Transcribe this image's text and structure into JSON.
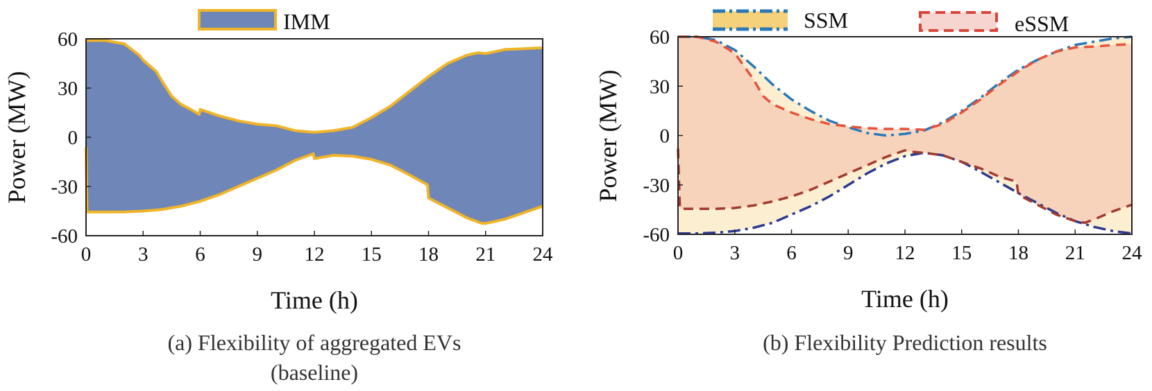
{
  "chart_data": [
    {
      "type": "area",
      "caption": [
        "(a) Flexibility of aggregated EVs",
        "(baseline)"
      ],
      "xlabel": "Time (h)",
      "ylabel": "Power (MW)",
      "xlim": [
        0,
        24
      ],
      "ylim": [
        -60,
        60
      ],
      "xticks": [
        "0",
        "3",
        "6",
        "9",
        "12",
        "15",
        "18",
        "21",
        "24"
      ],
      "yticks": [
        "60",
        "30",
        "0",
        "-30",
        "-60"
      ],
      "legend_position": "top-center",
      "grid": false,
      "series": [
        {
          "name": "IMM",
          "fill_color": "#6e86b8",
          "edge_color": "#f0b429",
          "style": "solid",
          "upper": {
            "x": [
              0,
              1,
              2,
              2.8,
              3,
              3.7,
              4,
              4.5,
              5,
              5.5,
              5.95,
              6,
              7,
              8,
              9,
              10,
              11,
              12,
              13,
              14,
              15,
              16,
              17,
              18,
              19,
              20,
              20.6,
              21,
              22,
              23,
              24
            ],
            "y": [
              59,
              59,
              57,
              50,
              47,
              40,
              34,
              25,
              20,
              17,
              14,
              17,
              13,
              10,
              8,
              7,
              4,
              3,
              4,
              6,
              12,
              19,
              28,
              37,
              45,
              50,
              51.5,
              51,
              53.5,
              54,
              54.5
            ]
          },
          "lower": {
            "x": [
              0,
              0.05,
              1,
              2,
              3,
              4,
              5,
              6,
              7,
              8,
              9,
              10,
              11,
              11.95,
              12,
              13,
              14,
              15,
              16,
              17,
              17.95,
              18,
              19,
              20,
              20.8,
              21,
              22,
              23,
              24
            ],
            "y": [
              -6,
              -45.5,
              -45.5,
              -45.5,
              -45,
              -44,
              -42,
              -39,
              -35,
              -30,
              -25,
              -20,
              -14,
              -10,
              -13,
              -11,
              -11.5,
              -13.5,
              -17,
              -23,
              -29,
              -37,
              -43,
              -49,
              -52.5,
              -52.5,
              -50,
              -46,
              -42
            ]
          }
        }
      ]
    },
    {
      "type": "area",
      "caption": [
        "(b) Flexibility Prediction results"
      ],
      "xlabel": "Time (h)",
      "ylabel": "Power (MW)",
      "xlim": [
        0,
        24
      ],
      "ylim": [
        -60,
        60
      ],
      "xticks": [
        "0",
        "3",
        "6",
        "9",
        "12",
        "15",
        "18",
        "21",
        "24"
      ],
      "yticks": [
        "60",
        "30",
        "0",
        "-30",
        "-60"
      ],
      "legend_position": "top",
      "grid": false,
      "series": [
        {
          "name": "SSM",
          "fill_color": "#f5d27a",
          "style": "dash-dot",
          "upper_color": "#2a78b8",
          "lower_color": "#2d3a8f",
          "upper": {
            "x": [
              0,
              1,
              2,
              3,
              4,
              5,
              6,
              7,
              8,
              9,
              10,
              11,
              12,
              13,
              14,
              15,
              16,
              17,
              18,
              19,
              20,
              21,
              22,
              23,
              24
            ],
            "y": [
              60,
              60,
              58,
              52,
              42,
              31,
              22,
              15,
              9,
              5,
              1.5,
              0,
              1,
              3,
              8,
              15,
              23,
              32,
              40,
              46,
              51,
              55,
              57,
              59,
              60
            ]
          },
          "lower": {
            "x": [
              0,
              1,
              2,
              3,
              4,
              5,
              6,
              7,
              8,
              9,
              10,
              11,
              12,
              13,
              14,
              15,
              16,
              17,
              18,
              19,
              20,
              21,
              22,
              23,
              24
            ],
            "y": [
              -59.5,
              -59.5,
              -59,
              -58,
              -56,
              -53,
              -48,
              -43,
              -37,
              -30,
              -23,
              -17,
              -12.5,
              -10.5,
              -12,
              -16,
              -22,
              -28.5,
              -35,
              -41,
              -47,
              -52,
              -55.5,
              -58,
              -59.5
            ]
          }
        },
        {
          "name": "eSSM",
          "fill_color": "#f4c9b2",
          "style": "dashed",
          "upper_color": "#e8513a",
          "lower_color": "#a13a2f",
          "upper": {
            "x": [
              0,
              1,
              2,
              3,
              4,
              4.5,
              5,
              6,
              7,
              8,
              9,
              10,
              11,
              12,
              13,
              14,
              15,
              16,
              17,
              18,
              19,
              20,
              21,
              22,
              23,
              24
            ],
            "y": [
              60,
              60,
              57,
              50,
              34,
              24,
              19,
              14,
              10,
              7,
              5.5,
              4.5,
              4,
              4,
              3.5,
              7,
              14,
              22,
              31,
              39,
              46,
              51,
              53.5,
              54,
              55,
              55.5
            ]
          },
          "lower": {
            "x": [
              0,
              0.1,
              1,
              2,
              3,
              4,
              5,
              6,
              7,
              8,
              9,
              10,
              11,
              12,
              12.5,
              13,
              14,
              15,
              16,
              17,
              17.9,
              18,
              19,
              20,
              21,
              21.5,
              22,
              23,
              24
            ],
            "y": [
              -8,
              -44.5,
              -44.5,
              -44.5,
              -44,
              -42.5,
              -40,
              -37,
              -33,
              -28,
              -23,
              -18,
              -13,
              -9,
              -10,
              -10.5,
              -12,
              -16,
              -20,
              -25,
              -28,
              -36,
              -42,
              -48,
              -52,
              -53,
              -51,
              -46,
              -42
            ]
          }
        }
      ]
    }
  ]
}
